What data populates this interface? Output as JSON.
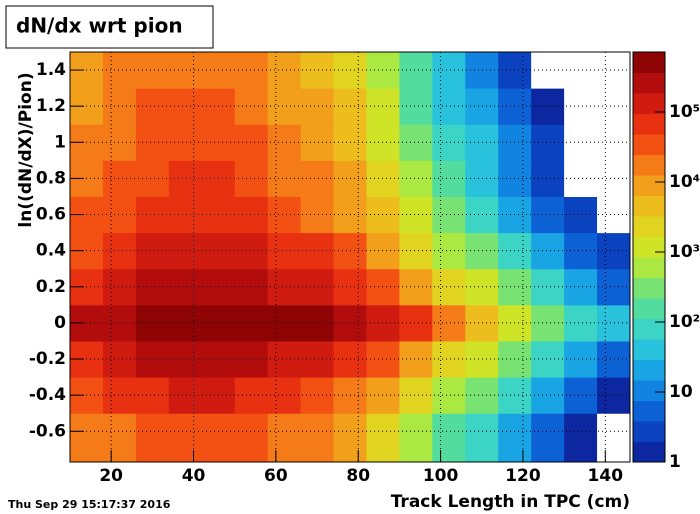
{
  "chart_data": {
    "type": "heatmap",
    "title": "dN/dx wrt pion",
    "timestamp": "Thu Sep 29 15:17:37 2016",
    "x_label": "Track Length in TPC (cm)",
    "y_label": "ln((dN/dX)/Pion)",
    "xbins": [
      10,
      18,
      26,
      34,
      42,
      50,
      58,
      66,
      74,
      82,
      90,
      98,
      106,
      114,
      122,
      130,
      138,
      146
    ],
    "ybins": [
      -0.77,
      -0.5,
      -0.3,
      -0.1,
      0.1,
      0.3,
      0.5,
      0.7,
      0.9,
      1.1,
      1.3,
      1.5
    ],
    "z": [
      [
        15000,
        23900,
        37900,
        42500,
        43400,
        31500,
        20300,
        13100,
        6700,
        2200,
        590,
        150,
        60,
        15,
        4,
        1,
        0
      ],
      [
        35800,
        56600,
        89600,
        105600,
        108000,
        84000,
        56600,
        39200,
        21000,
        8000,
        2300,
        640,
        250,
        63,
        16,
        4,
        1
      ],
      [
        76000,
        120000,
        190000,
        229000,
        245000,
        204000,
        148000,
        110000,
        63000,
        27000,
        9100,
        2700,
        1070,
        270,
        67,
        17,
        5
      ],
      [
        200000,
        316000,
        500000,
        630000,
        710000,
        630000,
        500000,
        400000,
        250000,
        126000,
        50000,
        16000,
        6300,
        1600,
        400,
        100,
        32
      ],
      [
        89000,
        141000,
        224000,
        269000,
        288000,
        240000,
        174000,
        129000,
        74000,
        32000,
        10700,
        3200,
        1260,
        316,
        79,
        20,
        6
      ],
      [
        44700,
        70800,
        112000,
        132000,
        135000,
        105000,
        70800,
        49000,
        26300,
        10000,
        2900,
        800,
        316,
        79,
        20,
        5,
        2
      ],
      [
        25100,
        39800,
        63100,
        70800,
        72400,
        52500,
        33900,
        21900,
        11200,
        3700,
        980,
        250,
        100,
        25,
        6,
        2,
        0
      ],
      [
        17800,
        28200,
        44700,
        50100,
        49000,
        34700,
        21400,
        13500,
        6600,
        2000,
        500,
        126,
        50,
        13,
        3,
        0,
        0
      ],
      [
        14100,
        22400,
        35500,
        38900,
        38000,
        26300,
        15800,
        9800,
        4700,
        1380,
        320,
        79,
        32,
        8,
        2,
        0,
        0
      ],
      [
        11200,
        17800,
        28200,
        30900,
        29500,
        20000,
        11700,
        7100,
        3300,
        930,
        210,
        50,
        20,
        5,
        1,
        0,
        0
      ],
      [
        8900,
        14100,
        22400,
        24000,
        22900,
        15100,
        8700,
        5100,
        2300,
        630,
        135,
        32,
        13,
        3,
        0,
        0,
        0
      ]
    ],
    "xlim": [
      10,
      146
    ],
    "ylim": [
      -0.77,
      1.5
    ],
    "xticks": [
      20,
      40,
      60,
      80,
      100,
      120,
      140
    ],
    "yticks": [
      -0.6,
      -0.4,
      -0.2,
      0,
      0.2,
      0.4,
      0.6,
      0.8,
      1,
      1.2,
      1.4
    ],
    "zlim": [
      1,
      720000
    ],
    "zticks": [
      1,
      10,
      {
        "value": 100,
        "label": "10²"
      },
      {
        "value": 1000,
        "label": "10³"
      },
      {
        "value": 10000,
        "label": "10⁴"
      },
      {
        "value": 100000,
        "label": "10⁵"
      }
    ],
    "zscale": "log",
    "grid": true,
    "colors": [
      "#0c1a8f",
      "#0a4fcf",
      "#1296e6",
      "#2fd0d8",
      "#5ee08a",
      "#c6ea2a",
      "#eacc1e",
      "#f5901a",
      "#f23c10",
      "#c41010",
      "#7c0000"
    ]
  }
}
